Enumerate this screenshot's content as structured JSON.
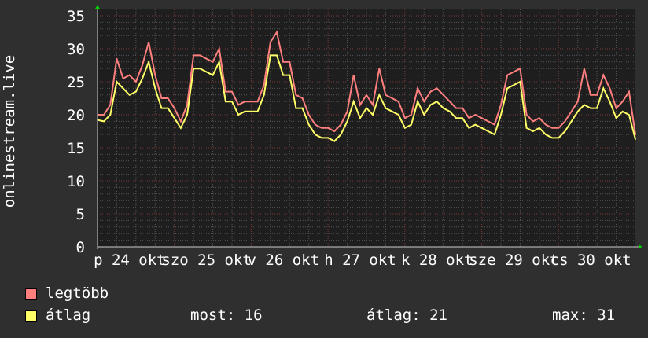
{
  "chart_data": {
    "type": "line",
    "ylabel": "onlinestream.live",
    "ylim": [
      0,
      35
    ],
    "yticks": [
      0,
      5,
      10,
      15,
      20,
      25,
      30,
      35
    ],
    "xlabels": [
      "p 24 okt",
      "szo 25 okt",
      "v 26 okt",
      "h 27 okt",
      "k 28 okt",
      "sze 29 okt",
      "cs 30 okt"
    ],
    "grid": true,
    "legend_placement": "bottom-left",
    "x": [
      "10-24 00:00",
      "10-24 02:00",
      "10-24 04:00",
      "10-24 06:00",
      "10-24 08:00",
      "10-24 10:00",
      "10-24 12:00",
      "10-24 14:00",
      "10-24 16:00",
      "10-24 18:00",
      "10-24 20:00",
      "10-24 22:00",
      "10-25 00:00",
      "10-25 02:00",
      "10-25 04:00",
      "10-25 06:00",
      "10-25 08:00",
      "10-25 10:00",
      "10-25 12:00",
      "10-25 14:00",
      "10-25 16:00",
      "10-25 18:00",
      "10-25 20:00",
      "10-25 22:00",
      "10-26 00:00",
      "10-26 02:00",
      "10-26 04:00",
      "10-26 06:00",
      "10-26 08:00",
      "10-26 10:00",
      "10-26 12:00",
      "10-26 14:00",
      "10-26 16:00",
      "10-26 18:00",
      "10-26 20:00",
      "10-26 22:00",
      "10-27 00:00",
      "10-27 02:00",
      "10-27 04:00",
      "10-27 06:00",
      "10-27 08:00",
      "10-27 10:00",
      "10-27 12:00",
      "10-27 14:00",
      "10-27 16:00",
      "10-27 18:00",
      "10-27 20:00",
      "10-27 22:00",
      "10-28 00:00",
      "10-28 02:00",
      "10-28 04:00",
      "10-28 06:00",
      "10-28 08:00",
      "10-28 10:00",
      "10-28 12:00",
      "10-28 14:00",
      "10-28 16:00",
      "10-28 18:00",
      "10-28 20:00",
      "10-28 22:00",
      "10-29 00:00",
      "10-29 02:00",
      "10-29 04:00",
      "10-29 06:00",
      "10-29 08:00",
      "10-29 10:00",
      "10-29 12:00",
      "10-29 14:00",
      "10-29 16:00",
      "10-29 18:00",
      "10-29 20:00",
      "10-29 22:00",
      "10-30 00:00",
      "10-30 02:00",
      "10-30 04:00",
      "10-30 06:00",
      "10-30 08:00",
      "10-30 10:00",
      "10-30 12:00",
      "10-30 14:00",
      "10-30 16:00",
      "10-30 18:00",
      "10-30 20:00",
      "10-30 22:00",
      "10-31 00:00"
    ],
    "series": [
      {
        "name": "legtöbb",
        "color": "#ff7f7f",
        "values": [
          20,
          20,
          21.5,
          28.5,
          25.5,
          26,
          25,
          27.5,
          31,
          26,
          22.5,
          22.5,
          21,
          19,
          21.5,
          29,
          29,
          28.5,
          28,
          30,
          23.5,
          23.5,
          21.5,
          22,
          22,
          22,
          24.5,
          31,
          32.5,
          28,
          28,
          23,
          22.5,
          20,
          18.5,
          18,
          18,
          17.5,
          18.5,
          20.5,
          26,
          21.5,
          23,
          21.5,
          27,
          23,
          22.5,
          22,
          19.5,
          20,
          24,
          22,
          23.5,
          24,
          23,
          22,
          21,
          21,
          19.5,
          20,
          19.5,
          19,
          18.5,
          21.5,
          26,
          26.5,
          27,
          20,
          19,
          19.5,
          18.5,
          18,
          18,
          19,
          20.5,
          22,
          27,
          23,
          23,
          26,
          24,
          21,
          22,
          23.5,
          17
        ]
      },
      {
        "name": "átlag",
        "color": "#ffff66",
        "values": [
          19.2,
          19,
          20,
          25,
          24,
          23,
          23.5,
          25.5,
          28,
          24,
          21,
          21,
          19.5,
          18,
          20,
          27,
          27,
          26.5,
          26,
          28,
          22,
          22,
          20,
          20.5,
          20.5,
          20.5,
          23,
          29,
          29,
          26,
          26,
          21,
          21,
          18.5,
          17,
          16.5,
          16.5,
          16,
          17,
          19,
          22,
          19.5,
          21,
          20,
          23,
          21,
          20.5,
          20,
          18,
          18.5,
          22,
          20,
          21.5,
          22,
          21,
          20.5,
          19.5,
          19.5,
          18,
          18.5,
          18,
          17.5,
          17,
          20,
          24,
          24.5,
          25,
          18,
          17.5,
          18,
          17,
          16.5,
          16.5,
          17.5,
          19,
          20.5,
          21.5,
          21,
          21,
          24,
          22,
          19.5,
          20.5,
          20,
          16.3
        ]
      }
    ]
  },
  "legend": {
    "items": [
      {
        "label": "legtöbb",
        "color": "#ff7f7f"
      },
      {
        "label": "átlag",
        "color": "#ffff66"
      }
    ],
    "most": "most: 16",
    "atlag": "átlag: 21",
    "max": "max: 31"
  }
}
